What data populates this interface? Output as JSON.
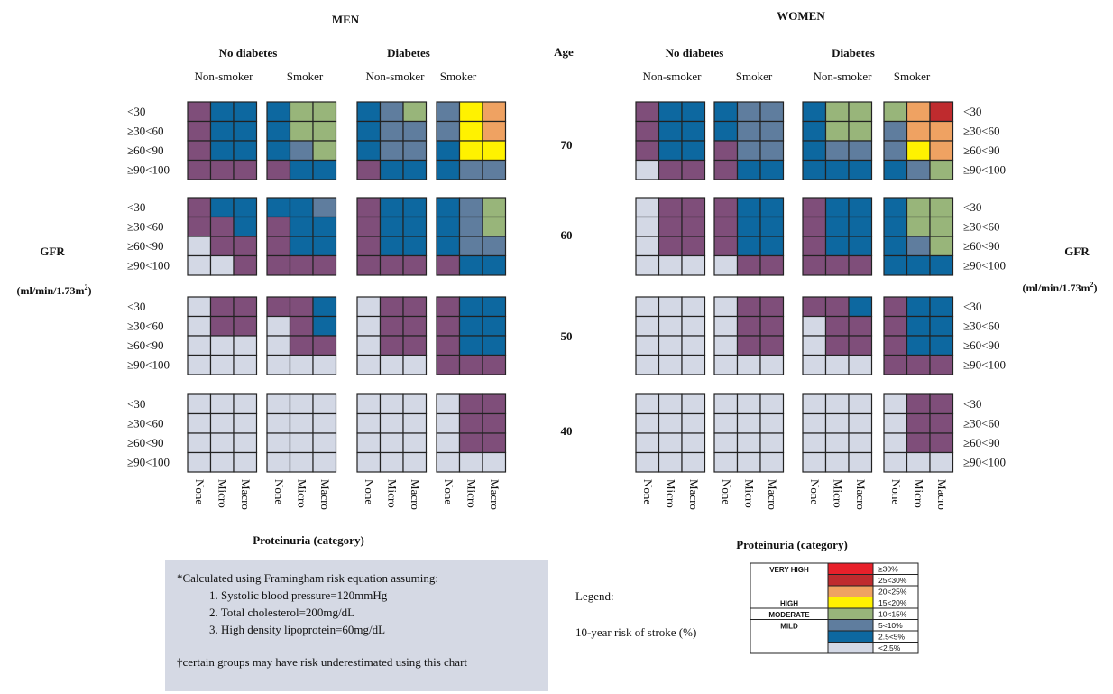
{
  "colors": {
    "c7": "#E8202A",
    "c6": "#BF2B2E",
    "c5": "#EFA262",
    "c4": "#FFF200",
    "c3": "#98B57A",
    "c2": "#5F7D9E",
    "c1": "#0D68A0",
    "c0": "#7F4E7A",
    "cL": "#D3D8E5",
    "grid": "#222222",
    "note_box": "#D5D9E4"
  },
  "chart_data": {
    "type": "heatmap",
    "panels": [
      {
        "title": "MEN",
        "conditions": [
          "No diabetes",
          "Diabetes"
        ]
      },
      {
        "title": "WOMEN",
        "conditions": [
          "No diabetes",
          "Diabetes"
        ]
      }
    ],
    "smoking": [
      "Non-smoker",
      "Smoker"
    ],
    "age_label": "Age",
    "ages": [
      "70",
      "60",
      "50",
      "40"
    ],
    "gfr_rows": [
      "<30",
      "≥30<60",
      "≥60<90",
      "≥90<100"
    ],
    "proteinuria": [
      "None",
      "Micro",
      "Macro"
    ],
    "y_axis_label": "GFR",
    "y_axis_unit": "(ml/min/1.73m",
    "y_axis_unit_sup": "2",
    "y_axis_unit_close": ")",
    "x_axis_label": "Proteinuria (category)",
    "levels": [
      "<2.5%",
      "2.5<5%",
      "5<10%",
      "10<15%",
      "15<20%",
      "20<25%",
      "25<30%",
      "≥30%"
    ],
    "grid_order": "men: [age][gfr_row] -> 12 columns (No diabetes Non-smoker None/Micro/Macro, No diabetes Smoker, Diabetes Non-smoker, Diabetes Smoker); women likewise. Values are risk level indices into levels.",
    "men": [
      [
        [
          1,
          2,
          2,
          2,
          4,
          4,
          2,
          3,
          4,
          3,
          5,
          6
        ],
        [
          1,
          2,
          2,
          2,
          4,
          4,
          2,
          3,
          3,
          3,
          5,
          6
        ],
        [
          1,
          2,
          2,
          2,
          3,
          4,
          2,
          3,
          3,
          2,
          5,
          5
        ],
        [
          1,
          1,
          1,
          1,
          2,
          2,
          1,
          2,
          2,
          2,
          3,
          3
        ]
      ],
      [
        [
          1,
          2,
          2,
          2,
          2,
          3,
          1,
          2,
          2,
          2,
          3,
          4
        ],
        [
          1,
          1,
          2,
          1,
          2,
          2,
          1,
          2,
          2,
          2,
          3,
          4
        ],
        [
          0,
          1,
          1,
          1,
          2,
          2,
          1,
          2,
          2,
          2,
          3,
          3
        ],
        [
          0,
          0,
          1,
          1,
          1,
          1,
          1,
          1,
          1,
          1,
          2,
          2
        ]
      ],
      [
        [
          0,
          1,
          1,
          1,
          1,
          2,
          0,
          1,
          1,
          1,
          2,
          2
        ],
        [
          0,
          1,
          1,
          0,
          1,
          2,
          0,
          1,
          1,
          1,
          2,
          2
        ],
        [
          0,
          0,
          0,
          0,
          1,
          1,
          0,
          1,
          1,
          1,
          2,
          2
        ],
        [
          0,
          0,
          0,
          0,
          0,
          0,
          0,
          0,
          0,
          1,
          1,
          1
        ]
      ],
      [
        [
          0,
          0,
          0,
          0,
          0,
          0,
          0,
          0,
          0,
          0,
          1,
          1
        ],
        [
          0,
          0,
          0,
          0,
          0,
          0,
          0,
          0,
          0,
          0,
          1,
          1
        ],
        [
          0,
          0,
          0,
          0,
          0,
          0,
          0,
          0,
          0,
          0,
          1,
          1
        ],
        [
          0,
          0,
          0,
          0,
          0,
          0,
          0,
          0,
          0,
          0,
          0,
          0
        ]
      ]
    ],
    "women": [
      [
        [
          1,
          2,
          2,
          2,
          3,
          3,
          2,
          4,
          4,
          4,
          6,
          7
        ],
        [
          1,
          2,
          2,
          2,
          3,
          3,
          2,
          4,
          4,
          3,
          6,
          6
        ],
        [
          1,
          2,
          2,
          1,
          3,
          3,
          2,
          3,
          3,
          3,
          5,
          6
        ],
        [
          0,
          1,
          1,
          1,
          2,
          2,
          2,
          2,
          2,
          2,
          3,
          4
        ]
      ],
      [
        [
          0,
          1,
          1,
          1,
          2,
          2,
          1,
          2,
          2,
          2,
          4,
          4
        ],
        [
          0,
          1,
          1,
          1,
          2,
          2,
          1,
          2,
          2,
          2,
          4,
          4
        ],
        [
          0,
          1,
          1,
          1,
          2,
          2,
          1,
          2,
          2,
          2,
          3,
          4
        ],
        [
          0,
          0,
          0,
          0,
          1,
          1,
          1,
          1,
          1,
          2,
          2,
          2
        ]
      ],
      [
        [
          0,
          0,
          0,
          0,
          1,
          1,
          1,
          1,
          2,
          1,
          2,
          2
        ],
        [
          0,
          0,
          0,
          0,
          1,
          1,
          0,
          1,
          1,
          1,
          2,
          2
        ],
        [
          0,
          0,
          0,
          0,
          1,
          1,
          0,
          1,
          1,
          1,
          2,
          2
        ],
        [
          0,
          0,
          0,
          0,
          0,
          0,
          0,
          0,
          0,
          1,
          1,
          1
        ]
      ],
      [
        [
          0,
          0,
          0,
          0,
          0,
          0,
          0,
          0,
          0,
          0,
          1,
          1
        ],
        [
          0,
          0,
          0,
          0,
          0,
          0,
          0,
          0,
          0,
          0,
          1,
          1
        ],
        [
          0,
          0,
          0,
          0,
          0,
          0,
          0,
          0,
          0,
          0,
          1,
          1
        ],
        [
          0,
          0,
          0,
          0,
          0,
          0,
          0,
          0,
          0,
          0,
          0,
          0
        ]
      ]
    ]
  },
  "notes": {
    "line1": "*Calculated using Framingham risk equation assuming:",
    "item1": "1.  Systolic blood pressure=120mmHg",
    "item2": "2.  Total cholesterol=200mg/dL",
    "item3": "3.  High density lipoprotein=60mg/dL",
    "footnote": "†certain groups may have risk underestimated using this chart"
  },
  "legend": {
    "title": "Legend:",
    "subtitle": "10-year risk of stroke (%)",
    "categories": [
      {
        "label": "VERY HIGH",
        "ranges": [
          "≥30%",
          "25<30%",
          "20<25%"
        ],
        "colors": [
          "c7",
          "c6",
          "c5"
        ]
      },
      {
        "label": "HIGH",
        "ranges": [
          "15<20%"
        ],
        "colors": [
          "c4"
        ]
      },
      {
        "label": "MODERATE",
        "ranges": [
          "10<15%"
        ],
        "colors": [
          "c3"
        ]
      },
      {
        "label": "MILD",
        "ranges": [
          "5<10%",
          "2.5<5%",
          "<2.5%"
        ],
        "colors": [
          "c2",
          "c1",
          "cL"
        ]
      }
    ]
  }
}
